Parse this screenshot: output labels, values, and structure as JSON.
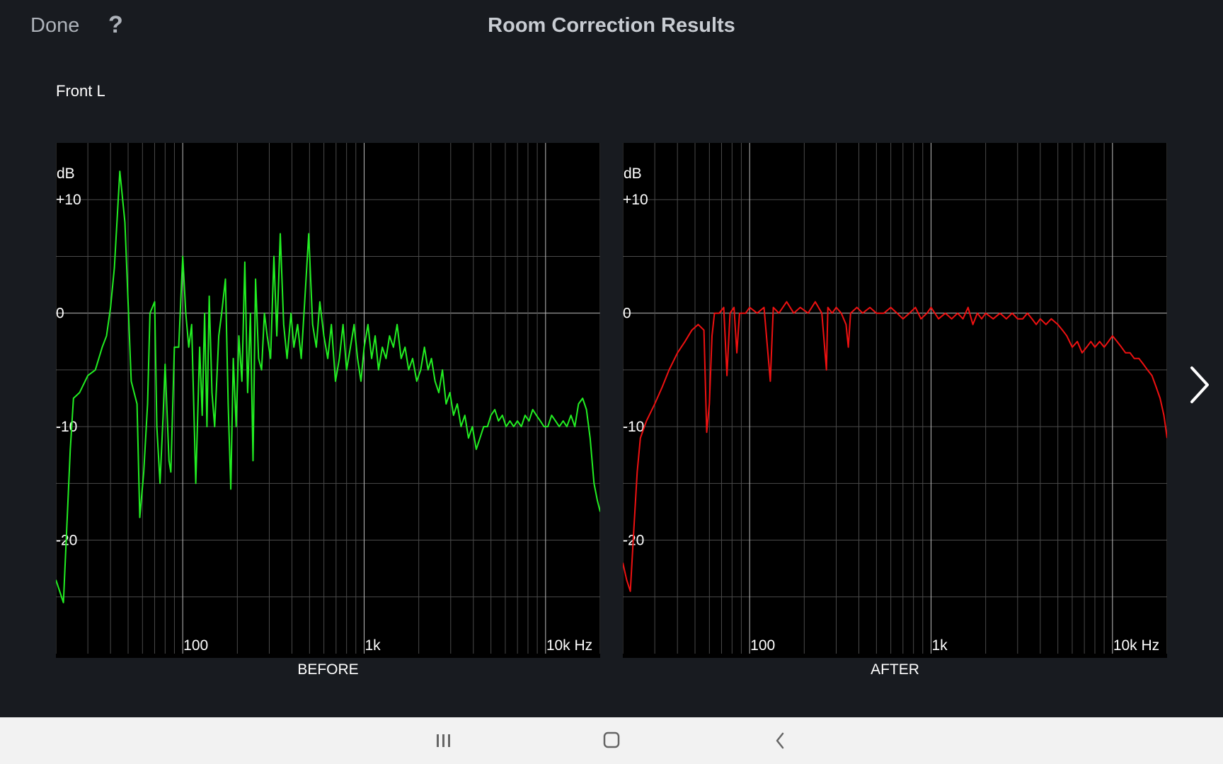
{
  "header": {
    "done_label": "Done",
    "help_label": "?",
    "title": "Room Correction Results"
  },
  "channel": "Front L",
  "colors": {
    "background": "#181b20",
    "before_curve": "#22ee22",
    "after_curve": "#ee1111",
    "grid": "#4a4a4a",
    "grid_major": "#bdbdbd"
  },
  "icons": {
    "next": "chevron-right-icon",
    "nav_recents": "recents-icon",
    "nav_home": "home-icon",
    "nav_back": "back-icon"
  },
  "chart_data": [
    {
      "type": "line",
      "caption": "BEFORE",
      "xlabel": "",
      "ylabel": "dB",
      "x_scale": "log",
      "xlim": [
        20,
        20000
      ],
      "ylim": [
        -30,
        15
      ],
      "y_ticks": [
        "+10",
        "0",
        "-10",
        "-20"
      ],
      "y_tick_values": [
        10,
        0,
        -10,
        -20
      ],
      "x_ticks": [
        "100",
        "1k",
        "10k Hz"
      ],
      "x_tick_values": [
        100,
        1000,
        10000
      ],
      "grid": true,
      "series": [
        {
          "color": "#22ee22",
          "points": [
            [
              20,
              -23.5
            ],
            [
              22,
              -25.5
            ],
            [
              24,
              -12
            ],
            [
              25,
              -7.5
            ],
            [
              27,
              -7
            ],
            [
              30,
              -5.5
            ],
            [
              33,
              -5
            ],
            [
              36,
              -3
            ],
            [
              38,
              -2
            ],
            [
              40,
              0.5
            ],
            [
              42,
              4
            ],
            [
              45,
              12.5
            ],
            [
              48,
              8
            ],
            [
              52,
              -6
            ],
            [
              56,
              -8
            ],
            [
              58,
              -18
            ],
            [
              61,
              -14
            ],
            [
              64,
              -8
            ],
            [
              66,
              0
            ],
            [
              70,
              1
            ],
            [
              72,
              -10
            ],
            [
              75,
              -15
            ],
            [
              78,
              -9
            ],
            [
              80,
              -4.5
            ],
            [
              84,
              -13
            ],
            [
              86,
              -14
            ],
            [
              90,
              -3
            ],
            [
              95,
              -3
            ],
            [
              100,
              5
            ],
            [
              104,
              0
            ],
            [
              108,
              -3
            ],
            [
              112,
              -1
            ],
            [
              118,
              -15
            ],
            [
              124,
              -3
            ],
            [
              128,
              -9
            ],
            [
              132,
              0
            ],
            [
              136,
              -10
            ],
            [
              140,
              1.5
            ],
            [
              145,
              -7
            ],
            [
              150,
              -10
            ],
            [
              158,
              -2
            ],
            [
              164,
              0
            ],
            [
              172,
              3
            ],
            [
              178,
              -8
            ],
            [
              184,
              -15.5
            ],
            [
              190,
              -4
            ],
            [
              197,
              -10
            ],
            [
              204,
              -2
            ],
            [
              212,
              -6
            ],
            [
              220,
              4.5
            ],
            [
              228,
              -7
            ],
            [
              236,
              0
            ],
            [
              244,
              -13
            ],
            [
              252,
              3
            ],
            [
              262,
              -4
            ],
            [
              272,
              -5
            ],
            [
              282,
              0
            ],
            [
              292,
              -2
            ],
            [
              305,
              -4
            ],
            [
              318,
              5
            ],
            [
              330,
              -2
            ],
            [
              345,
              7
            ],
            [
              360,
              -1
            ],
            [
              376,
              -4
            ],
            [
              395,
              0
            ],
            [
              410,
              -3
            ],
            [
              430,
              -1
            ],
            [
              450,
              -4
            ],
            [
              470,
              1
            ],
            [
              495,
              7
            ],
            [
              520,
              -1
            ],
            [
              545,
              -3
            ],
            [
              570,
              1
            ],
            [
              600,
              -2
            ],
            [
              630,
              -4
            ],
            [
              660,
              -1
            ],
            [
              695,
              -6
            ],
            [
              730,
              -4
            ],
            [
              765,
              -1
            ],
            [
              800,
              -5
            ],
            [
              840,
              -3
            ],
            [
              880,
              -1
            ],
            [
              920,
              -4
            ],
            [
              960,
              -6
            ],
            [
              1000,
              -3
            ],
            [
              1050,
              -1
            ],
            [
              1100,
              -4
            ],
            [
              1150,
              -2
            ],
            [
              1200,
              -5
            ],
            [
              1260,
              -3
            ],
            [
              1320,
              -4
            ],
            [
              1380,
              -2
            ],
            [
              1450,
              -3
            ],
            [
              1520,
              -1
            ],
            [
              1600,
              -4
            ],
            [
              1680,
              -3
            ],
            [
              1760,
              -5
            ],
            [
              1850,
              -4
            ],
            [
              1950,
              -6
            ],
            [
              2050,
              -5
            ],
            [
              2150,
              -3
            ],
            [
              2250,
              -5
            ],
            [
              2350,
              -4
            ],
            [
              2460,
              -6
            ],
            [
              2580,
              -7
            ],
            [
              2700,
              -5
            ],
            [
              2830,
              -8
            ],
            [
              2970,
              -7
            ],
            [
              3110,
              -9
            ],
            [
              3260,
              -8
            ],
            [
              3420,
              -10
            ],
            [
              3590,
              -9
            ],
            [
              3760,
              -11
            ],
            [
              3950,
              -10
            ],
            [
              4150,
              -12
            ],
            [
              4350,
              -11
            ],
            [
              4560,
              -10
            ],
            [
              4780,
              -10
            ],
            [
              5000,
              -9
            ],
            [
              5250,
              -8.5
            ],
            [
              5500,
              -9.5
            ],
            [
              5780,
              -9
            ],
            [
              6060,
              -10
            ],
            [
              6360,
              -9.5
            ],
            [
              6670,
              -10
            ],
            [
              7000,
              -9.5
            ],
            [
              7350,
              -10
            ],
            [
              7710,
              -9
            ],
            [
              8100,
              -9.5
            ],
            [
              8500,
              -8.5
            ],
            [
              8900,
              -9
            ],
            [
              9350,
              -9.5
            ],
            [
              9800,
              -10
            ],
            [
              10300,
              -10
            ],
            [
              10800,
              -9
            ],
            [
              11350,
              -9.5
            ],
            [
              11900,
              -10
            ],
            [
              12500,
              -9.5
            ],
            [
              13100,
              -10
            ],
            [
              13800,
              -9
            ],
            [
              14500,
              -10
            ],
            [
              15200,
              -8
            ],
            [
              16000,
              -7.5
            ],
            [
              16800,
              -8.5
            ],
            [
              17600,
              -11
            ],
            [
              18500,
              -15
            ],
            [
              19300,
              -16.5
            ],
            [
              20000,
              -17.5
            ]
          ]
        }
      ]
    },
    {
      "type": "line",
      "caption": "AFTER",
      "xlabel": "",
      "ylabel": "dB",
      "x_scale": "log",
      "xlim": [
        20,
        20000
      ],
      "ylim": [
        -30,
        15
      ],
      "y_ticks": [
        "+10",
        "0",
        "-10",
        "-20"
      ],
      "y_tick_values": [
        10,
        0,
        -10,
        -20
      ],
      "x_ticks": [
        "100",
        "1k",
        "10k Hz"
      ],
      "x_tick_values": [
        100,
        1000,
        10000
      ],
      "grid": true,
      "series": [
        {
          "color": "#ee1111",
          "points": [
            [
              20,
              -22
            ],
            [
              21,
              -23.5
            ],
            [
              22,
              -24.5
            ],
            [
              23,
              -19
            ],
            [
              24,
              -14
            ],
            [
              25,
              -11
            ],
            [
              27,
              -9.5
            ],
            [
              30,
              -8
            ],
            [
              33,
              -6.5
            ],
            [
              36,
              -5
            ],
            [
              40,
              -3.5
            ],
            [
              44,
              -2.5
            ],
            [
              48,
              -1.5
            ],
            [
              52,
              -1
            ],
            [
              56,
              -1.5
            ],
            [
              58,
              -10.5
            ],
            [
              60,
              -8
            ],
            [
              62,
              -2
            ],
            [
              64,
              0
            ],
            [
              68,
              0
            ],
            [
              72,
              0.5
            ],
            [
              75,
              -5.5
            ],
            [
              78,
              0
            ],
            [
              82,
              0.5
            ],
            [
              85,
              -3.5
            ],
            [
              88,
              0
            ],
            [
              95,
              0
            ],
            [
              100,
              0.5
            ],
            [
              110,
              0
            ],
            [
              120,
              0.5
            ],
            [
              130,
              -6
            ],
            [
              135,
              0.5
            ],
            [
              145,
              0
            ],
            [
              160,
              1
            ],
            [
              175,
              0
            ],
            [
              190,
              0.5
            ],
            [
              210,
              0
            ],
            [
              230,
              1
            ],
            [
              250,
              0
            ],
            [
              265,
              -5
            ],
            [
              270,
              0.5
            ],
            [
              285,
              0
            ],
            [
              300,
              0.5
            ],
            [
              320,
              0
            ],
            [
              340,
              -1
            ],
            [
              350,
              -3
            ],
            [
              360,
              0
            ],
            [
              390,
              0.5
            ],
            [
              420,
              0
            ],
            [
              460,
              0.5
            ],
            [
              500,
              0
            ],
            [
              550,
              0
            ],
            [
              600,
              0.5
            ],
            [
              650,
              0
            ],
            [
              700,
              -0.5
            ],
            [
              760,
              0
            ],
            [
              820,
              0.5
            ],
            [
              880,
              -0.5
            ],
            [
              950,
              0
            ],
            [
              1000,
              0.5
            ],
            [
              1100,
              -0.5
            ],
            [
              1200,
              0
            ],
            [
              1300,
              -0.5
            ],
            [
              1400,
              0
            ],
            [
              1500,
              -0.5
            ],
            [
              1600,
              0.5
            ],
            [
              1700,
              -1
            ],
            [
              1800,
              0
            ],
            [
              1900,
              -0.5
            ],
            [
              2000,
              0
            ],
            [
              2200,
              -0.5
            ],
            [
              2400,
              0
            ],
            [
              2600,
              -0.5
            ],
            [
              2800,
              0
            ],
            [
              3000,
              -0.5
            ],
            [
              3200,
              -0.5
            ],
            [
              3400,
              0
            ],
            [
              3600,
              -0.5
            ],
            [
              3800,
              -1
            ],
            [
              4000,
              -0.5
            ],
            [
              4300,
              -1
            ],
            [
              4600,
              -0.5
            ],
            [
              5000,
              -1
            ],
            [
              5300,
              -1.5
            ],
            [
              5600,
              -2
            ],
            [
              6000,
              -3
            ],
            [
              6400,
              -2.5
            ],
            [
              6800,
              -3.5
            ],
            [
              7200,
              -3
            ],
            [
              7600,
              -2.5
            ],
            [
              8000,
              -3
            ],
            [
              8500,
              -2.5
            ],
            [
              9000,
              -3
            ],
            [
              9500,
              -2.5
            ],
            [
              10000,
              -2
            ],
            [
              10600,
              -2.5
            ],
            [
              11200,
              -3
            ],
            [
              11800,
              -3.5
            ],
            [
              12500,
              -3.5
            ],
            [
              13200,
              -4
            ],
            [
              14000,
              -4
            ],
            [
              14800,
              -4.5
            ],
            [
              15600,
              -5
            ],
            [
              16500,
              -5.5
            ],
            [
              17400,
              -6.5
            ],
            [
              18300,
              -7.5
            ],
            [
              19200,
              -9
            ],
            [
              20000,
              -11
            ]
          ]
        }
      ]
    }
  ],
  "system_nav": {
    "recents": "recents",
    "home": "home",
    "back": "back"
  }
}
